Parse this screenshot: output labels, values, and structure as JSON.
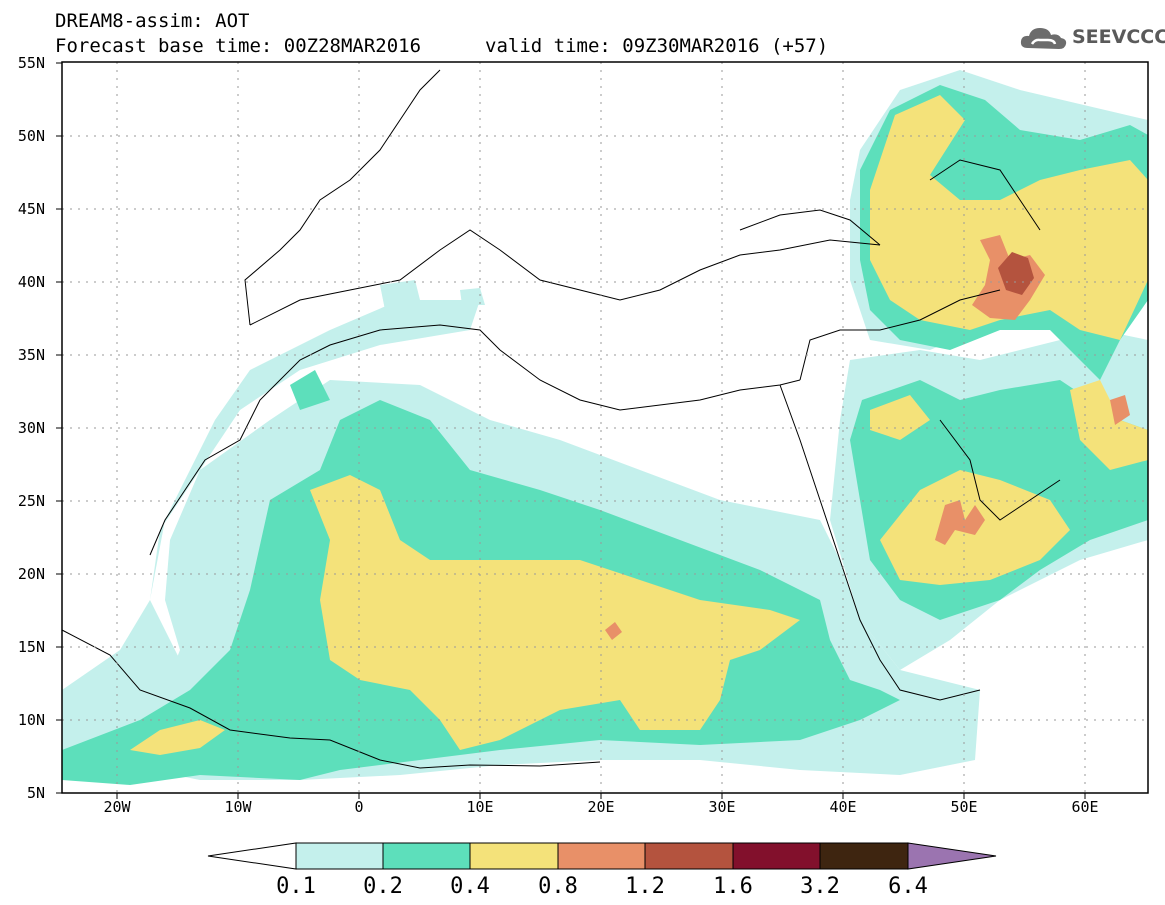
{
  "header": {
    "title": "DREAM8-assim: AOT",
    "base_time": "Forecast base time: 00Z28MAR2016",
    "valid_time": "valid time: 09Z30MAR2016 (+57)"
  },
  "logo": {
    "text": "SEEVCCC",
    "icon": "cloud-icon"
  },
  "map": {
    "lon_range": [
      -25,
      65
    ],
    "lat_range": [
      5,
      55
    ],
    "lat_labels": [
      "55N",
      "50N",
      "45N",
      "40N",
      "35N",
      "30N",
      "25N",
      "20N",
      "15N",
      "10N",
      "5N"
    ],
    "lon_labels": [
      "20W",
      "10W",
      "0",
      "10E",
      "20E",
      "30E",
      "40E",
      "50E",
      "60E"
    ],
    "gridlines": "dotted"
  },
  "colorbar": {
    "labels": [
      "0.1",
      "0.2",
      "0.4",
      "0.8",
      "1.2",
      "1.6",
      "3.2",
      "6.4"
    ],
    "colors": [
      "#ffffff",
      "#c4f0ec",
      "#5ddfbb",
      "#f4e27a",
      "#e89068",
      "#b4533e",
      "#82102c",
      "#3e2510",
      "#9b74b0"
    ]
  }
}
